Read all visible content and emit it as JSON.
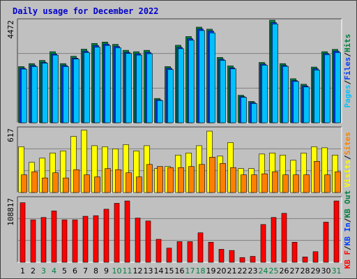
{
  "title": "Daily usage for December 2022",
  "colors": {
    "background": "#c0c0c0",
    "title": "#0000cc",
    "hits": "#008040",
    "files": "#0040ff",
    "pages": "#00c0ff",
    "visits": "#ffff00",
    "sites": "#ff8000",
    "kbytes": "#ff0000",
    "weekend_day": "#008040",
    "weekday_day": "#000000"
  },
  "chart_data": {
    "type": "bar",
    "x": [
      "1",
      "2",
      "3",
      "4",
      "5",
      "6",
      "7",
      "8",
      "9",
      "10",
      "11",
      "12",
      "13",
      "14",
      "15",
      "16",
      "17",
      "18",
      "19",
      "20",
      "21",
      "22",
      "23",
      "24",
      "25",
      "26",
      "27",
      "28",
      "29",
      "30",
      "31"
    ],
    "weekend_days": [
      "3",
      "4",
      "10",
      "11",
      "17",
      "18",
      "24",
      "25",
      "31"
    ],
    "panels": [
      {
        "name": "hits-files-pages",
        "max_label": "4472",
        "side_label": [
          "Pages",
          "/",
          "Files",
          "/",
          "Hits"
        ],
        "ylim": [
          0,
          4472
        ],
        "series": [
          {
            "name": "Hits",
            "values": [
              2450,
              2580,
              2720,
              3100,
              2580,
              2900,
              3210,
              3460,
              3520,
              3420,
              3160,
              3100,
              3160,
              1060,
              2450,
              3380,
              3760,
              4170,
              4080,
              2850,
              2480,
              1200,
              930,
              2630,
              4472,
              2580,
              1920,
              1680,
              2430,
              3100,
              3200
            ]
          },
          {
            "name": "Files",
            "values": [
              2380,
              2500,
              2640,
              3000,
              2500,
              2820,
              3120,
              3370,
              3430,
              3330,
              3070,
              3010,
              3070,
              1000,
              2380,
              3290,
              3670,
              4090,
              4000,
              2770,
              2400,
              1140,
              880,
              2560,
              4370,
              2500,
              1840,
              1610,
              2360,
              3020,
              3120
            ]
          },
          {
            "name": "Pages",
            "values": [
              2340,
              2450,
              2600,
              2950,
              2450,
              2780,
              3060,
              3300,
              3370,
              3270,
              3020,
              2950,
              3010,
              970,
              2320,
              3230,
              3600,
              4020,
              3920,
              2720,
              2350,
              1110,
              840,
              2510,
              4310,
              2460,
              1800,
              1560,
              2300,
              2970,
              3060
            ]
          }
        ]
      },
      {
        "name": "visits-sites",
        "max_label": "617",
        "side_label": [
          "Visits",
          "/",
          "Sites"
        ],
        "ylim": [
          0,
          617
        ],
        "series": [
          {
            "name": "Visits",
            "values": [
              440,
              290,
              330,
              380,
              400,
              540,
              600,
              450,
              440,
              420,
              460,
              400,
              450,
              230,
              250,
              360,
              380,
              450,
              590,
              350,
              480,
              230,
              230,
              370,
              380,
              360,
              310,
              380,
              440,
              430,
              360
            ]
          },
          {
            "name": "Sites",
            "values": [
              170,
              200,
              140,
              190,
              140,
              220,
              170,
              150,
              230,
              220,
              190,
              150,
              270,
              250,
              240,
              240,
              250,
              270,
              340,
              280,
              240,
              170,
              170,
              180,
              200,
              170,
              170,
              170,
              300,
              170,
              200
            ]
          }
        ]
      },
      {
        "name": "kbytes",
        "max_label": "108817",
        "side_label": [
          "KB F",
          "/",
          "KB In",
          "/",
          "KB Out"
        ],
        "ylim": [
          0,
          108817
        ],
        "series": [
          {
            "name": "KB F",
            "values": [
              101000,
              72000,
              76000,
              87000,
              72000,
              72000,
              78000,
              79000,
              90000,
              100000,
              104000,
              75000,
              70000,
              39000,
              24000,
              35000,
              35000,
              50000,
              34000,
              22000,
              20000,
              8000,
              10000,
              64000,
              76000,
              83000,
              34000,
              9000,
              18000,
              68000,
              104000
            ]
          }
        ]
      }
    ]
  }
}
